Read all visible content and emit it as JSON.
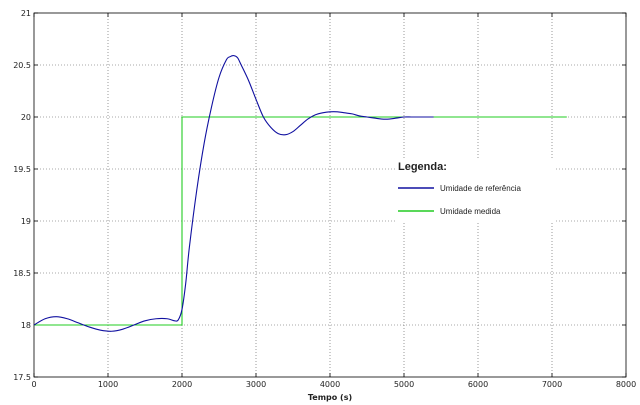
{
  "chart_data": {
    "type": "line",
    "title": "",
    "xlabel": "Tempo (s)",
    "ylabel": "",
    "xlim": [
      0,
      8000
    ],
    "ylim": [
      17.5,
      21
    ],
    "xticks": [
      0,
      1000,
      2000,
      3000,
      4000,
      5000,
      6000,
      7000,
      8000
    ],
    "yticks": [
      17.5,
      18,
      18.5,
      19,
      19.5,
      20,
      20.5,
      21
    ],
    "xtick_labels": [
      "0",
      "1000",
      "2000",
      "3000",
      "4000",
      "5000",
      "6000",
      "7000",
      "8000"
    ],
    "ytick_labels": [
      "17.5",
      "18",
      "18.5",
      "19",
      "19.5",
      "20",
      "20.5",
      "21"
    ],
    "grid": true,
    "legend": {
      "title": "Legenda:",
      "placement": "right-middle",
      "entries": [
        "Umidade de referência",
        "Umidade medida"
      ]
    },
    "series": [
      {
        "name": "Umidade de referência",
        "color": "#1010a0",
        "x": [
          0,
          150,
          300,
          450,
          600,
          750,
          900,
          1050,
          1200,
          1350,
          1500,
          1650,
          1800,
          1900,
          1950,
          2000,
          2050,
          2100,
          2200,
          2300,
          2400,
          2500,
          2600,
          2650,
          2700,
          2750,
          2800,
          2900,
          3000,
          3100,
          3200,
          3300,
          3400,
          3500,
          3600,
          3700,
          3800,
          3900,
          4000,
          4100,
          4200,
          4300,
          4400,
          4500,
          4600,
          4700,
          4800,
          4900,
          5000,
          5100,
          5200,
          5300,
          5400
        ],
        "y": [
          18.0,
          18.06,
          18.08,
          18.06,
          18.02,
          17.98,
          17.95,
          17.94,
          17.96,
          18.0,
          18.04,
          18.06,
          18.06,
          18.04,
          18.05,
          18.15,
          18.4,
          18.75,
          19.3,
          19.75,
          20.1,
          20.38,
          20.55,
          20.58,
          20.59,
          20.57,
          20.5,
          20.35,
          20.17,
          20.0,
          19.9,
          19.84,
          19.83,
          19.86,
          19.92,
          19.98,
          20.02,
          20.04,
          20.05,
          20.05,
          20.04,
          20.03,
          20.01,
          20.0,
          19.99,
          19.98,
          19.98,
          19.99,
          20.0,
          20.0,
          20.0,
          20.0,
          20.0
        ]
      },
      {
        "name": "Umidade medida",
        "color": "#22cc22",
        "x": [
          0,
          2000,
          2000,
          7200
        ],
        "y": [
          18.0,
          18.0,
          20.0,
          20.0
        ]
      }
    ]
  }
}
